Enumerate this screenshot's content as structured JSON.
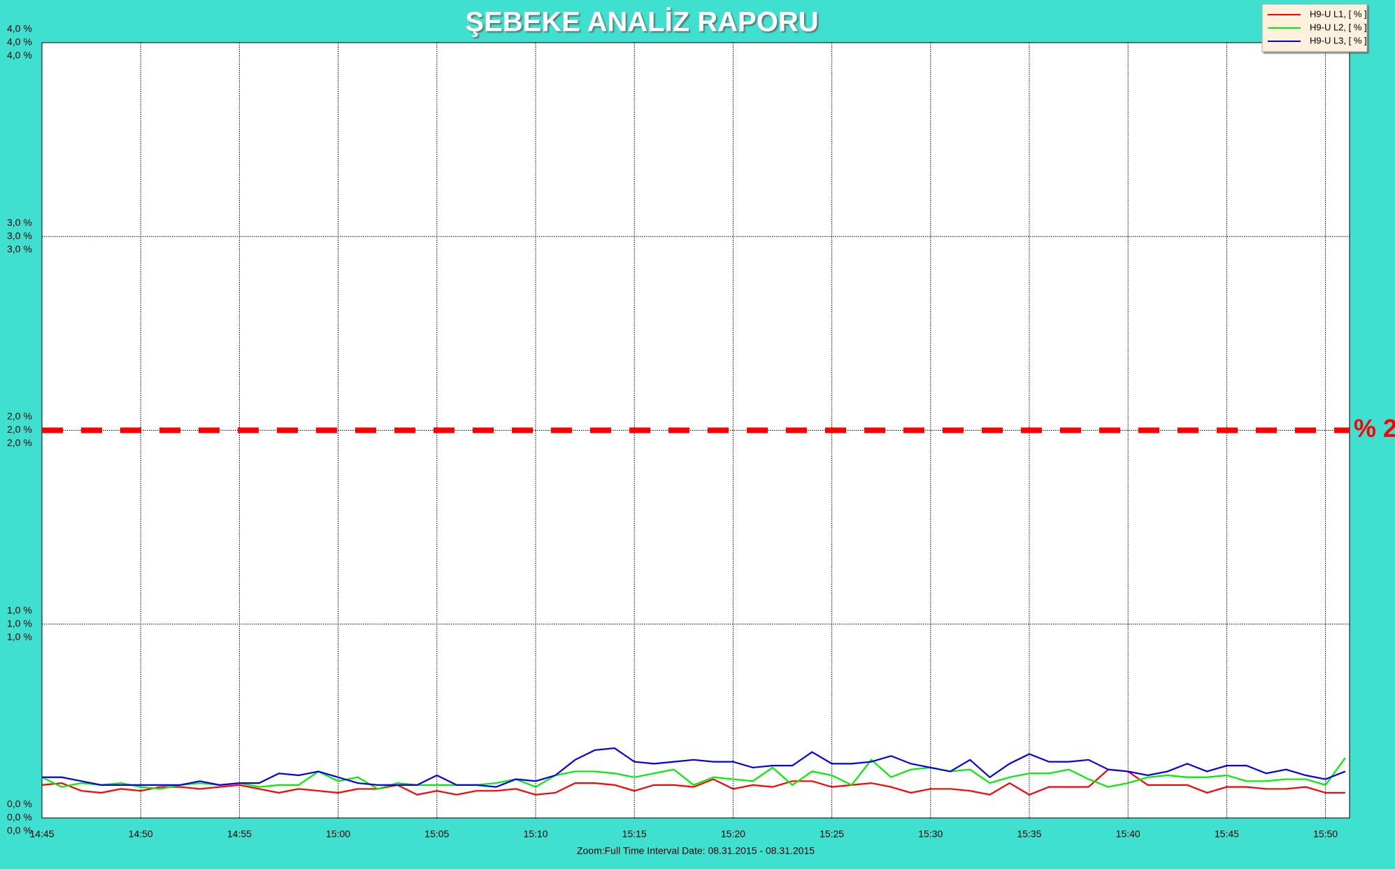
{
  "chart_data": {
    "type": "line",
    "title": "ŞEBEKE ANALİZ RAPORU",
    "footer": "Zoom:Full Time Interval    Date: 08.31.2015  -  08.31.2015",
    "categories": [
      "14:45",
      null,
      null,
      null,
      null,
      "14:50",
      null,
      null,
      null,
      null,
      "14:55",
      null,
      null,
      null,
      null,
      "15:00",
      null,
      null,
      null,
      null,
      "15:05",
      null,
      null,
      null,
      null,
      "15:10",
      null,
      null,
      null,
      null,
      "15:15",
      null,
      null,
      null,
      null,
      "15:20",
      null,
      null,
      null,
      null,
      "15:25",
      null,
      null,
      null,
      null,
      "15:30",
      null,
      null,
      null,
      null,
      "15:35",
      null,
      null,
      null,
      null,
      "15:40",
      null,
      null,
      null,
      null,
      "15:45",
      null,
      null,
      null,
      null,
      "15:50",
      null
    ],
    "ylim": [
      0,
      4
    ],
    "yticks": [
      {
        "value": 0,
        "label": "0,0 %"
      },
      {
        "value": 1,
        "label": "1,0 %"
      },
      {
        "value": 2,
        "label": "2,0 %"
      },
      {
        "value": 3,
        "label": "3,0 %"
      },
      {
        "value": 4,
        "label": "4,0 %"
      }
    ],
    "grid": true,
    "legend": "top-right",
    "threshold": {
      "value": 2,
      "label": "% 2",
      "color": "#ff0000"
    },
    "series": [
      {
        "name": "H9-U L1, [ % ]",
        "color": "#ff0000",
        "values": [
          0.17,
          0.18,
          0.14,
          0.13,
          0.15,
          0.14,
          0.16,
          0.16,
          0.15,
          0.16,
          0.17,
          0.15,
          0.13,
          0.15,
          0.14,
          0.13,
          0.15,
          0.15,
          0.17,
          0.12,
          0.14,
          0.12,
          0.14,
          0.14,
          0.15,
          0.12,
          0.13,
          0.18,
          0.18,
          0.17,
          0.14,
          0.17,
          0.17,
          0.16,
          0.2,
          0.15,
          0.17,
          0.16,
          0.19,
          0.19,
          0.16,
          0.17,
          0.18,
          0.16,
          0.13,
          0.15,
          0.15,
          0.14,
          0.12,
          0.18,
          0.12,
          0.16,
          0.16,
          0.16,
          0.25,
          0.24,
          0.17,
          0.17,
          0.17,
          0.13,
          0.16,
          0.16,
          0.15,
          0.15,
          0.16,
          0.13,
          0.13
        ]
      },
      {
        "name": "H9-U L2, [ % ]",
        "color": "#00ee00",
        "values": [
          0.21,
          0.16,
          0.18,
          0.17,
          0.18,
          0.16,
          0.15,
          0.17,
          0.18,
          0.17,
          0.18,
          0.16,
          0.17,
          0.17,
          0.24,
          0.19,
          0.21,
          0.15,
          0.18,
          0.17,
          0.17,
          0.17,
          0.17,
          0.18,
          0.2,
          0.16,
          0.22,
          0.24,
          0.24,
          0.23,
          0.21,
          0.23,
          0.25,
          0.17,
          0.21,
          0.2,
          0.19,
          0.26,
          0.17,
          0.24,
          0.22,
          0.17,
          0.3,
          0.21,
          0.25,
          0.26,
          0.24,
          0.25,
          0.18,
          0.21,
          0.23,
          0.23,
          0.25,
          0.2,
          0.16,
          0.18,
          0.21,
          0.22,
          0.21,
          0.21,
          0.22,
          0.19,
          0.19,
          0.2,
          0.2,
          0.17,
          0.31
        ]
      },
      {
        "name": "H9-U L3, [ % ]",
        "color": "#0000ee",
        "values": [
          0.21,
          0.21,
          0.19,
          0.17,
          0.17,
          0.17,
          0.17,
          0.17,
          0.19,
          0.17,
          0.18,
          0.18,
          0.23,
          0.22,
          0.24,
          0.21,
          0.18,
          0.17,
          0.17,
          0.17,
          0.22,
          0.17,
          0.17,
          0.16,
          0.2,
          0.19,
          0.22,
          0.3,
          0.35,
          0.36,
          0.29,
          0.28,
          0.29,
          0.3,
          0.29,
          0.29,
          0.26,
          0.27,
          0.27,
          0.34,
          0.28,
          0.28,
          0.29,
          0.32,
          0.28,
          0.26,
          0.24,
          0.3,
          0.21,
          0.28,
          0.33,
          0.29,
          0.29,
          0.3,
          0.25,
          0.24,
          0.22,
          0.24,
          0.28,
          0.24,
          0.27,
          0.27,
          0.23,
          0.25,
          0.22,
          0.2,
          0.24
        ]
      }
    ]
  }
}
